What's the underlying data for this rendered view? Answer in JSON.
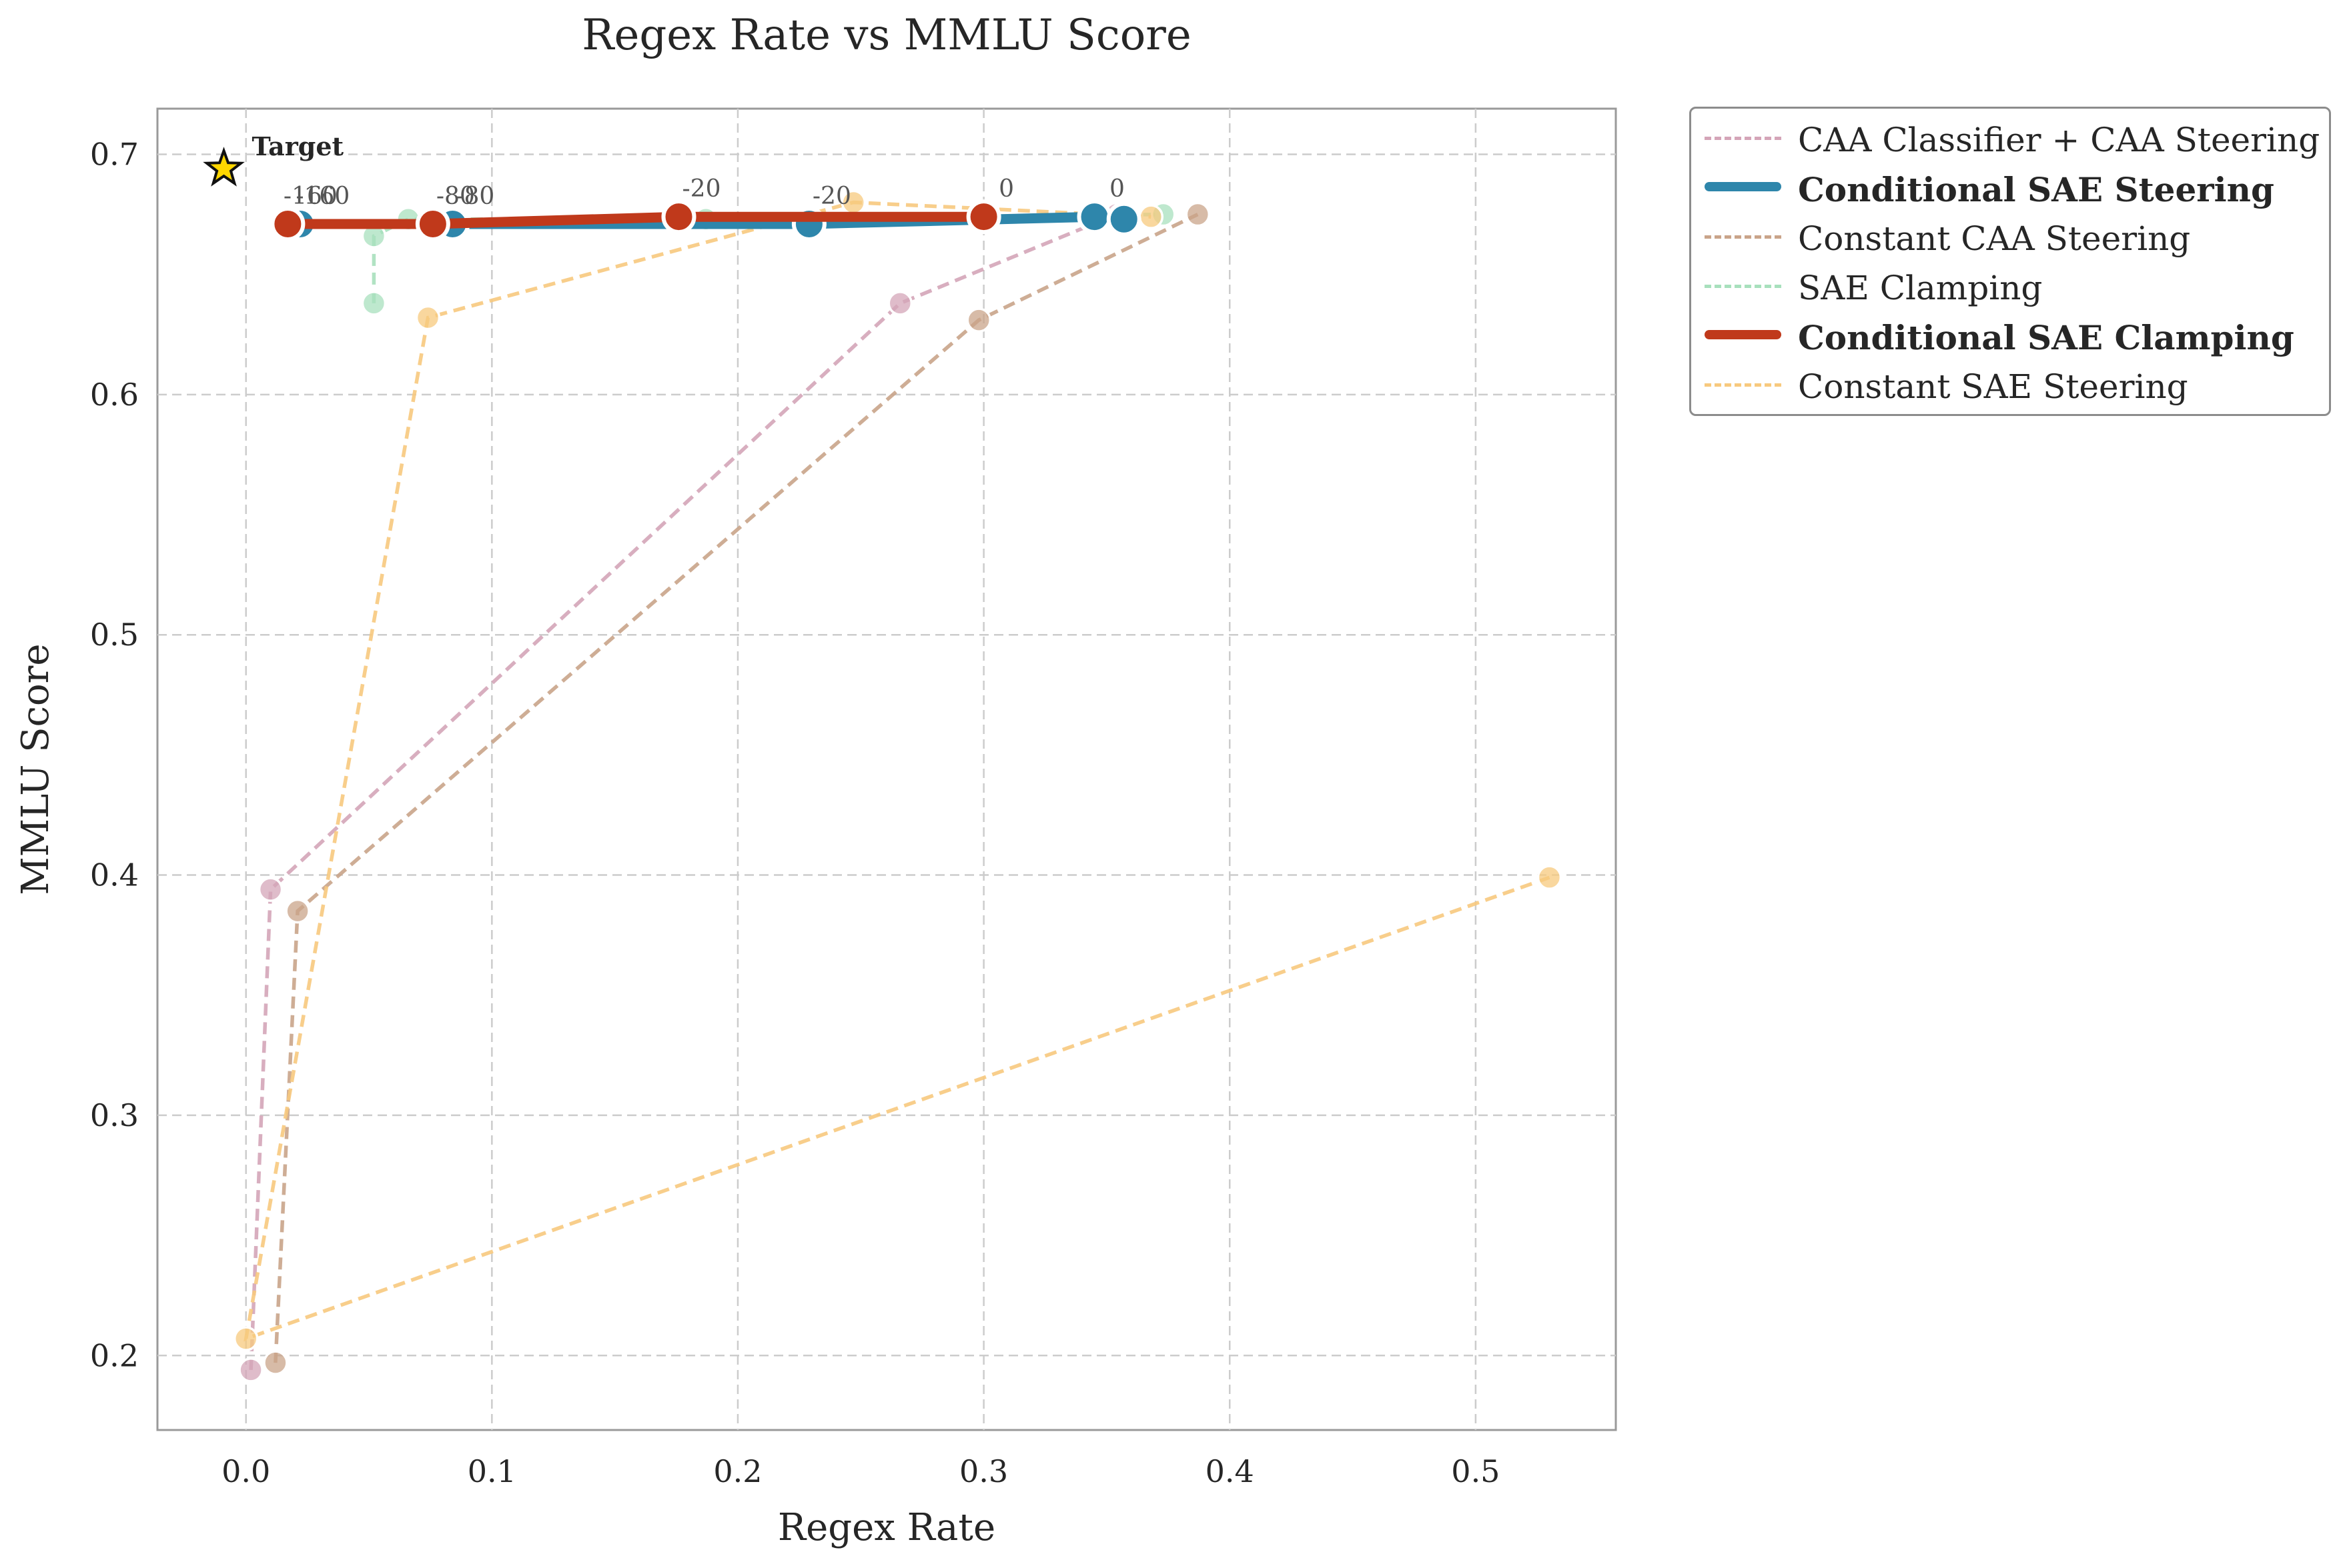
{
  "chart_data": {
    "type": "line",
    "title": "Regex Rate vs MMLU Score",
    "xlabel": "Regex Rate",
    "ylabel": "MMLU Score",
    "xlim": [
      -0.036,
      0.557
    ],
    "ylim": [
      0.169,
      0.719
    ],
    "xticks": [
      "0.0",
      "0.1",
      "0.2",
      "0.3",
      "0.4",
      "0.5"
    ],
    "xtick_values": [
      0.0,
      0.1,
      0.2,
      0.3,
      0.4,
      0.5
    ],
    "yticks": [
      "0.2",
      "0.3",
      "0.4",
      "0.5",
      "0.6",
      "0.7"
    ],
    "ytick_values": [
      0.2,
      0.3,
      0.4,
      0.5,
      0.6,
      0.7
    ],
    "grid": true,
    "legend_position": "outside-top-right",
    "target": {
      "label": "Target",
      "x": -0.009,
      "y": 0.694,
      "color": "#FFD700"
    },
    "series": [
      {
        "name": "CAA Classifier + CAA Steering",
        "color": "#d4a5b8",
        "style": "dashed",
        "bold": false,
        "points": [
          {
            "x": 0.002,
            "y": 0.194
          },
          {
            "x": 0.01,
            "y": 0.394
          },
          {
            "x": 0.266,
            "y": 0.638
          },
          {
            "x": 0.354,
            "y": 0.675
          }
        ]
      },
      {
        "name": "Conditional SAE Steering",
        "color": "#2e86ab",
        "style": "solid",
        "bold": true,
        "points": [
          {
            "x": 0.022,
            "y": 0.671,
            "label": "-160"
          },
          {
            "x": 0.084,
            "y": 0.671,
            "label": "-80"
          },
          {
            "x": 0.229,
            "y": 0.671,
            "label": "-20"
          },
          {
            "x": 0.345,
            "y": 0.674,
            "label": "0"
          },
          {
            "x": 0.357,
            "y": 0.673,
            "label": ""
          }
        ]
      },
      {
        "name": "Constant CAA Steering",
        "color": "#c9a48a",
        "style": "dashed",
        "bold": false,
        "points": [
          {
            "x": 0.012,
            "y": 0.197
          },
          {
            "x": 0.021,
            "y": 0.385
          },
          {
            "x": 0.298,
            "y": 0.631
          },
          {
            "x": 0.387,
            "y": 0.675
          }
        ]
      },
      {
        "name": "SAE Clamping",
        "color": "#a8e0bd",
        "style": "dashed",
        "bold": false,
        "points": [
          {
            "x": 0.052,
            "y": 0.638
          },
          {
            "x": 0.052,
            "y": 0.666
          },
          {
            "x": 0.066,
            "y": 0.673
          },
          {
            "x": 0.187,
            "y": 0.673
          },
          {
            "x": 0.373,
            "y": 0.675
          }
        ]
      },
      {
        "name": "Conditional SAE Clamping",
        "color": "#c0391b",
        "style": "solid",
        "bold": true,
        "points": [
          {
            "x": 0.017,
            "y": 0.671,
            "label": "-160"
          },
          {
            "x": 0.076,
            "y": 0.671,
            "label": "-80"
          },
          {
            "x": 0.176,
            "y": 0.674,
            "label": "-20"
          },
          {
            "x": 0.3,
            "y": 0.674,
            "label": "0"
          }
        ]
      },
      {
        "name": "Constant SAE Steering",
        "color": "#f7c97e",
        "style": "dashed",
        "bold": false,
        "points": [
          {
            "x": 0.53,
            "y": 0.399
          },
          {
            "x": 0.0,
            "y": 0.207
          },
          {
            "x": 0.074,
            "y": 0.632
          },
          {
            "x": 0.247,
            "y": 0.68
          },
          {
            "x": 0.368,
            "y": 0.674
          }
        ]
      }
    ]
  }
}
